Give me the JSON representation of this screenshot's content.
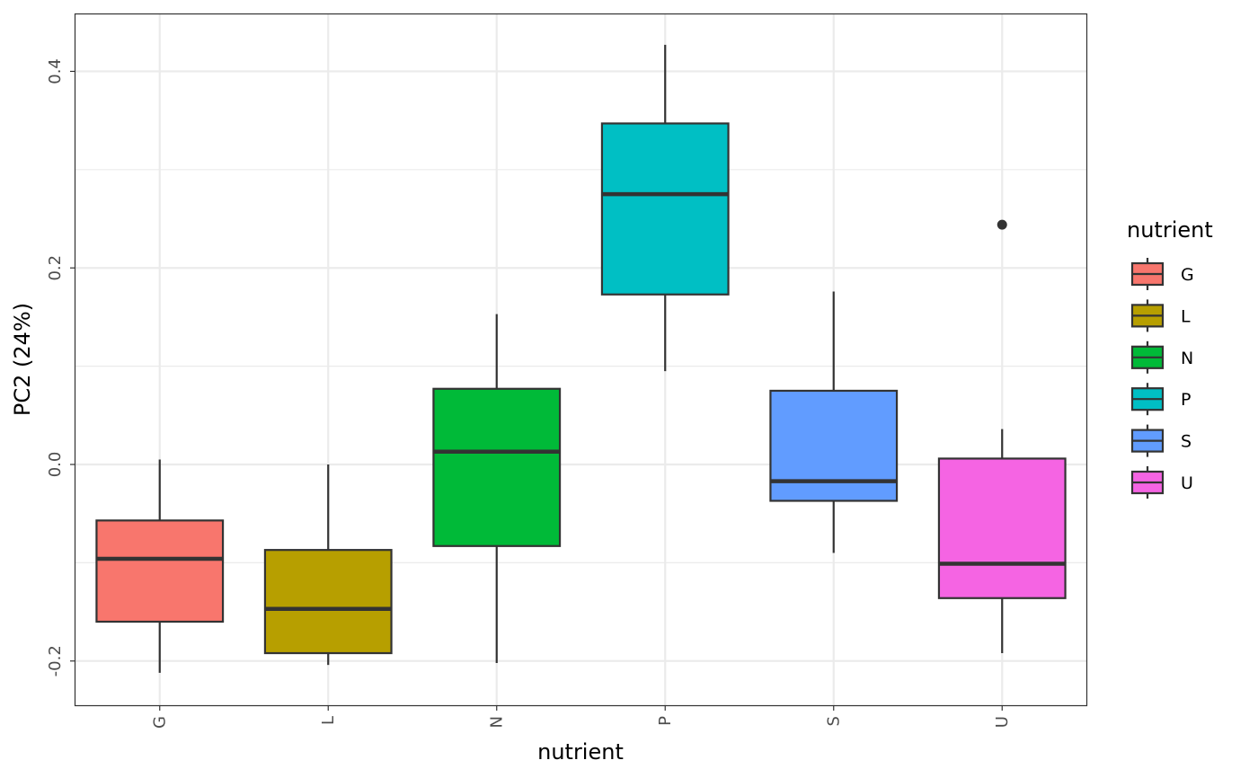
{
  "chart_data": {
    "type": "box",
    "xlabel": "nutrient",
    "ylabel": "PC2 (24%)",
    "ylim": [
      -0.245,
      0.458
    ],
    "y_ticks": [
      -0.2,
      0.0,
      0.2,
      0.4
    ],
    "y_tick_labels": [
      "-0.2",
      "0.0",
      "0.2",
      "0.4"
    ],
    "grid": true,
    "legend": {
      "title": "nutrient",
      "position": "right"
    },
    "categories": [
      "G",
      "L",
      "N",
      "P",
      "S",
      "U"
    ],
    "series": [
      {
        "name": "G",
        "color": "#F8766D",
        "whisker_low": -0.212,
        "q1": -0.16,
        "median": -0.096,
        "q3": -0.057,
        "whisker_high": 0.005,
        "outliers": []
      },
      {
        "name": "L",
        "color": "#B79F00",
        "whisker_low": -0.204,
        "q1": -0.192,
        "median": -0.147,
        "q3": -0.087,
        "whisker_high": 0.0,
        "outliers": []
      },
      {
        "name": "N",
        "color": "#00BA38",
        "whisker_low": -0.202,
        "q1": -0.083,
        "median": 0.013,
        "q3": 0.077,
        "whisker_high": 0.153,
        "outliers": []
      },
      {
        "name": "P",
        "color": "#00BFC4",
        "whisker_low": 0.095,
        "q1": 0.173,
        "median": 0.275,
        "q3": 0.347,
        "whisker_high": 0.427,
        "outliers": []
      },
      {
        "name": "S",
        "color": "#619CFF",
        "whisker_low": -0.09,
        "q1": -0.037,
        "median": -0.017,
        "q3": 0.075,
        "whisker_high": 0.176,
        "outliers": []
      },
      {
        "name": "U",
        "color": "#F564E3",
        "whisker_low": -0.192,
        "q1": -0.136,
        "median": -0.101,
        "q3": 0.006,
        "whisker_high": 0.036,
        "outliers": [
          0.244
        ]
      }
    ]
  }
}
